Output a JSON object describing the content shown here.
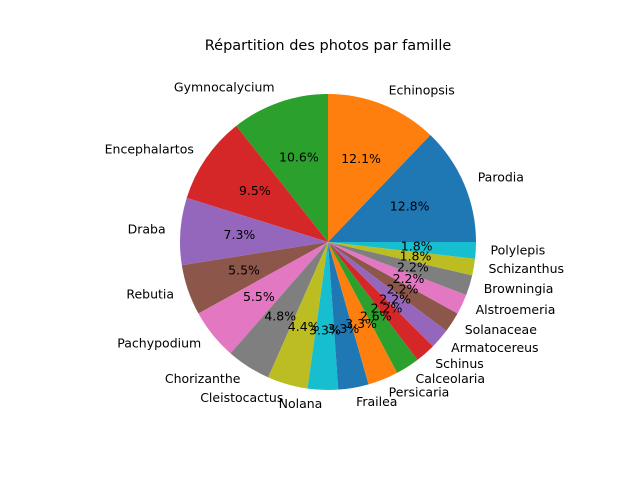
{
  "chart_data": {
    "type": "pie",
    "title": "Répartition des photos par famille",
    "slices": [
      {
        "label": "Parodia",
        "value": 12.8,
        "pct_label": "12.8%",
        "color": "#1f77b4"
      },
      {
        "label": "Echinopsis",
        "value": 12.1,
        "pct_label": "12.1%",
        "color": "#ff7f0e"
      },
      {
        "label": "Gymnocalycium",
        "value": 10.6,
        "pct_label": "10.6%",
        "color": "#2ca02c"
      },
      {
        "label": "Encephalartos",
        "value": 9.5,
        "pct_label": "9.5%",
        "color": "#d62728"
      },
      {
        "label": "Draba",
        "value": 7.3,
        "pct_label": "7.3%",
        "color": "#9467bd"
      },
      {
        "label": "Rebutia",
        "value": 5.5,
        "pct_label": "5.5%",
        "color": "#8c564b"
      },
      {
        "label": "Pachypodium",
        "value": 5.5,
        "pct_label": "5.5%",
        "color": "#e377c2"
      },
      {
        "label": "Chorizanthe",
        "value": 4.8,
        "pct_label": "4.8%",
        "color": "#7f7f7f"
      },
      {
        "label": "Cleistocactus",
        "value": 4.4,
        "pct_label": "4.4%",
        "color": "#bcbd22"
      },
      {
        "label": "Nolana",
        "value": 3.3,
        "pct_label": "3.3%",
        "color": "#17becf"
      },
      {
        "label": "Frailea",
        "value": 3.3,
        "pct_label": "3.3%",
        "color": "#1f77b4"
      },
      {
        "label": "Persicaria",
        "value": 3.3,
        "pct_label": "3.3%",
        "color": "#ff7f0e"
      },
      {
        "label": "Calceolaria",
        "value": 2.6,
        "pct_label": "2.6%",
        "color": "#2ca02c"
      },
      {
        "label": "Schinus",
        "value": 2.2,
        "pct_label": "2.2%",
        "color": "#d62728"
      },
      {
        "label": "Armatocereus",
        "value": 2.2,
        "pct_label": "2.2%",
        "color": "#9467bd"
      },
      {
        "label": "Solanaceae",
        "value": 2.2,
        "pct_label": "2.2%",
        "color": "#8c564b"
      },
      {
        "label": "Alstroemeria",
        "value": 2.2,
        "pct_label": "2.2%",
        "color": "#e377c2"
      },
      {
        "label": "Browningia",
        "value": 2.2,
        "pct_label": "2.2%",
        "color": "#7f7f7f"
      },
      {
        "label": "Schizanthus",
        "value": 1.8,
        "pct_label": "1.8%",
        "color": "#bcbd22"
      },
      {
        "label": "Polylepis",
        "value": 1.8,
        "pct_label": "1.8%",
        "color": "#17becf"
      }
    ],
    "start_angle_deg": 0,
    "direction": "counterclockwise"
  }
}
